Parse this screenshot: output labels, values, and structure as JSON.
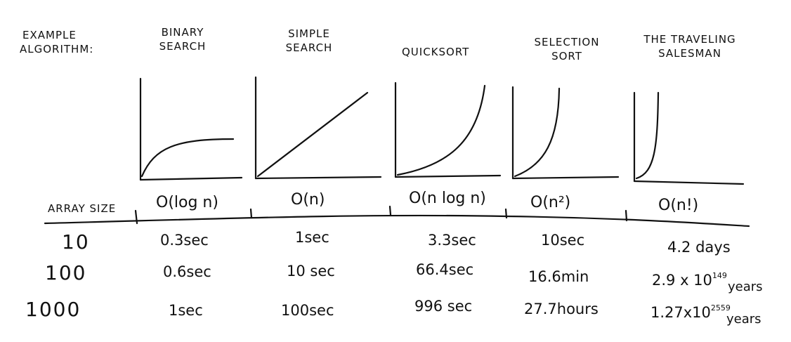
{
  "header": {
    "row_label_line1": "EXAMPLE",
    "row_label_line2": "ALGORITHM:",
    "algorithms": [
      {
        "line1": "BINARY",
        "line2": "SEARCH"
      },
      {
        "line1": "SIMPLE",
        "line2": "SEARCH"
      },
      {
        "line1": "QUICKSORT",
        "line2": ""
      },
      {
        "line1": "SELECTION",
        "line2": "SORT"
      },
      {
        "line1": "THE TRAVELING",
        "line2": "SALESMAN"
      }
    ]
  },
  "complexity_row": {
    "label": "ARRAY SIZE",
    "items": [
      "O(log n)",
      "O(n)",
      "O(n log n)",
      "O(n²)",
      "O(n!)"
    ]
  },
  "sizes": [
    "10",
    "100",
    "1000"
  ],
  "times": {
    "binary": [
      "0.3sec",
      "0.6sec",
      "1sec"
    ],
    "simple": [
      "1sec",
      "10 sec",
      "100sec"
    ],
    "quick": [
      "3.3sec",
      "66.4sec",
      "996 sec"
    ],
    "selection": [
      "10sec",
      "16.6min",
      "27.7hours"
    ],
    "tsp": {
      "row1": "4.2 days",
      "row2_base": "2.9 x 10",
      "row2_exp": "149",
      "row2_unit": "years",
      "row3_base": "1.27x10",
      "row3_exp": "2559",
      "row3_unit": "years"
    }
  }
}
